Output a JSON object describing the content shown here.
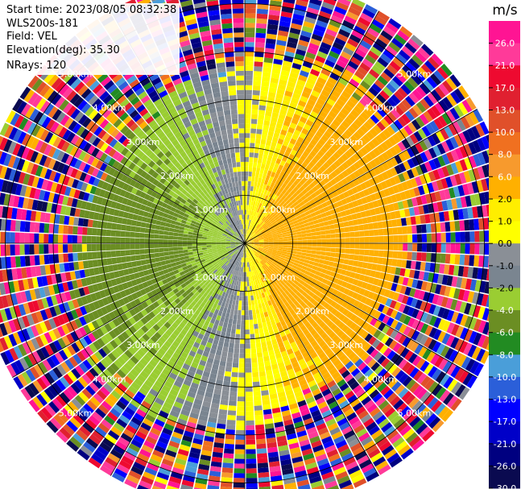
{
  "header": {
    "start_time": "Start time: 2023/08/05 08:32:38",
    "instrument": "WLS200s-181",
    "field": "Field: VEL",
    "elevation": "Elevation(deg): 35.30",
    "nrays": "NRays: 120"
  },
  "chart_data": {
    "type": "heatmap",
    "projection": "polar-ppi",
    "field": "VEL",
    "units": "m/s",
    "nrays": 120,
    "elevation_deg": 35.3,
    "range_rings_km": [
      1.0,
      2.0,
      3.0,
      4.0,
      5.0
    ],
    "range_labels": [
      "1.00km",
      "2.00km",
      "3.00km",
      "4.00km",
      "5.00km"
    ],
    "max_range_km": 5.6,
    "azimuth_spokes_deg": [
      0,
      30,
      60,
      90,
      120,
      150,
      180,
      210,
      240,
      270,
      300,
      330
    ],
    "colorbar": {
      "label": "m/s",
      "levels": [
        -30,
        -26,
        -21,
        -17,
        -13,
        -10,
        -8,
        -6,
        -4,
        -2,
        -1,
        0,
        1,
        2,
        6,
        8,
        10,
        13,
        17,
        21,
        26,
        30
      ],
      "tick_labels": [
        "-30.0",
        "-26.0",
        "-21.0",
        "-17.0",
        "-13.0",
        "-10.0",
        "-8.0",
        "-6.0",
        "-4.0",
        "-2.0",
        "-1.0",
        "0.0",
        "1.0",
        "2.0",
        "6.0",
        "8.0",
        "10.0",
        "13.0",
        "17.0",
        "21.0",
        "26.0"
      ],
      "colors": [
        "#0a0a50",
        "#000080",
        "#0000c8",
        "#0000ff",
        "#2b5fd9",
        "#4a9ed9",
        "#228b22",
        "#6b8e23",
        "#9acd32",
        "#7a8590",
        "#8a8f96",
        "#ffff00",
        "#ffee00",
        "#ffb000",
        "#f79a2d",
        "#f07020",
        "#e0502a",
        "#e02030",
        "#ee0a30",
        "#ff3a99",
        "#ff1493"
      ]
    }
  }
}
